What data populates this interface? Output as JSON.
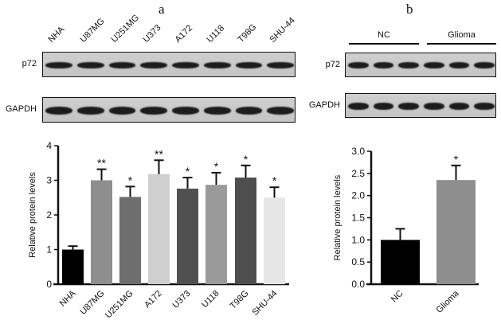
{
  "panel_a": {
    "letter": "a",
    "blot": {
      "lanes": [
        "NHA",
        "U87MG",
        "U251MG",
        "U373",
        "A172",
        "U118",
        "T98G",
        "SHU-44"
      ],
      "rows": [
        "p72",
        "GAPDH"
      ]
    }
  },
  "panel_b": {
    "letter": "b",
    "blot": {
      "groups": [
        "NC",
        "Glioma"
      ],
      "lanes_per_group": 3,
      "rows": [
        "p72",
        "GAPDH"
      ]
    }
  },
  "chart_data": [
    {
      "type": "bar",
      "title": "",
      "xlabel": "",
      "ylabel": "Relative protein levels",
      "ylim": [
        0,
        4
      ],
      "yticks": [
        "0",
        "1",
        "2",
        "3",
        "4"
      ],
      "grid": false,
      "categories": [
        "NHA",
        "U87MG",
        "U251MG",
        "A172",
        "U373",
        "U118",
        "T98G",
        "SHU-44"
      ],
      "values": [
        1.0,
        3.0,
        2.52,
        3.18,
        2.76,
        2.87,
        3.08,
        2.5
      ],
      "error_upper": [
        1.1,
        3.32,
        2.82,
        3.58,
        3.08,
        3.22,
        3.43,
        2.8
      ],
      "significance": [
        "",
        "**",
        "*",
        "**",
        "*",
        "*",
        "*",
        "*"
      ],
      "colors": [
        "#000000",
        "#8e8e8e",
        "#6e6e6e",
        "#cfcfcf",
        "#505050",
        "#9a9a9a",
        "#4e4e4e",
        "#e6e6e6"
      ]
    },
    {
      "type": "bar",
      "title": "",
      "xlabel": "",
      "ylabel": "Relative protein levels",
      "ylim": [
        0,
        3.0
      ],
      "yticks": [
        "0.0",
        "0.5",
        "1.0",
        "1.5",
        "2.0",
        "2.5",
        "3.0"
      ],
      "grid": false,
      "categories": [
        "NC",
        "Glioma"
      ],
      "values": [
        1.0,
        2.35
      ],
      "error_upper": [
        1.25,
        2.68
      ],
      "significance": [
        "",
        "*"
      ],
      "colors": [
        "#000000",
        "#8e8e8e"
      ]
    }
  ]
}
